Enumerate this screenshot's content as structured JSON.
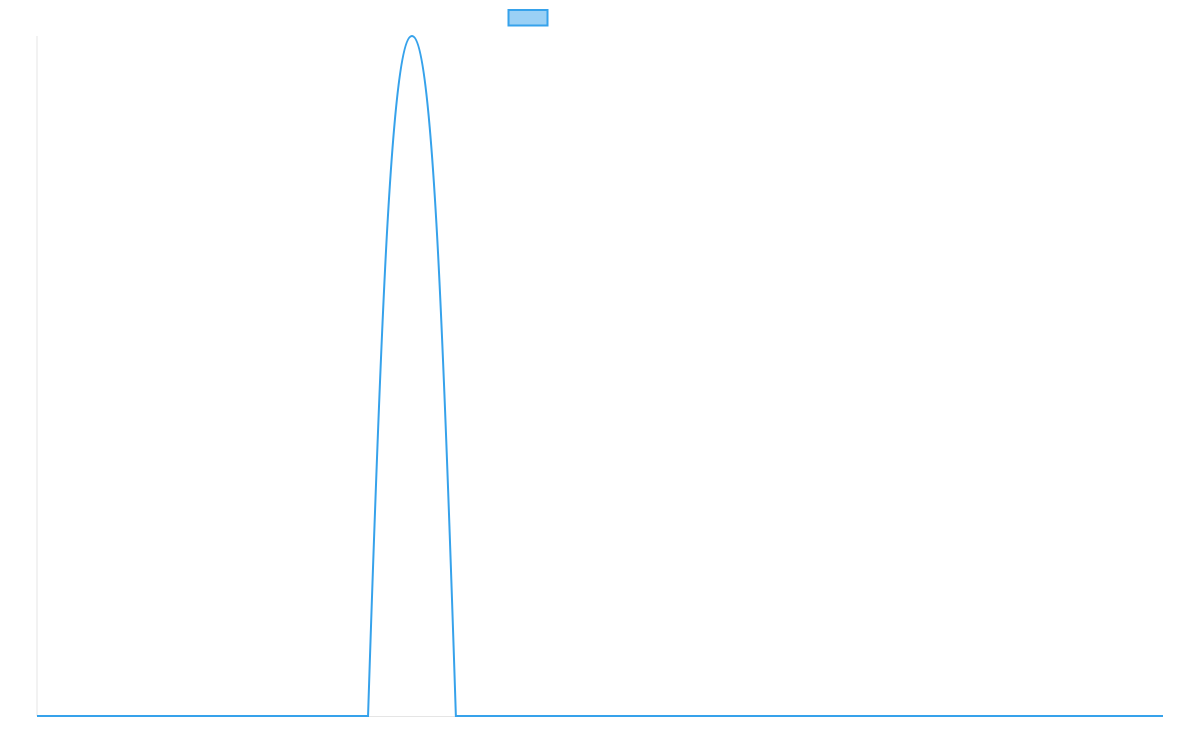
{
  "chart_data": {
    "type": "line",
    "title": "",
    "xlabel": "",
    "ylabel": "",
    "x": [
      0,
      29.4,
      33.3,
      37.2,
      100
    ],
    "series": [
      {
        "name": "",
        "values": [
          0,
          0,
          1,
          0,
          0
        ]
      }
    ],
    "xlim": [
      0,
      100
    ],
    "ylim": [
      0,
      1
    ],
    "grid": false,
    "legend": "top-center",
    "colors": {
      "line": "#36a2eb",
      "legend_fill": "#9ad0f5",
      "axis": "#e5e5e5"
    }
  }
}
